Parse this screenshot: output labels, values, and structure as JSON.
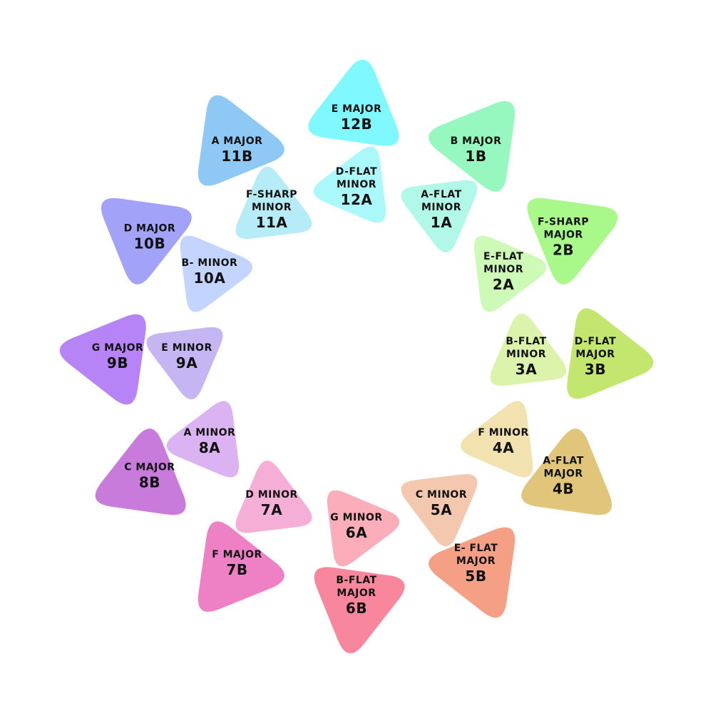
{
  "wheel": {
    "outer": [
      {
        "name": "E MAJOR",
        "code": "12B",
        "color": "#80F8FF"
      },
      {
        "name": "B MAJOR",
        "code": "1B",
        "color": "#96F8BE"
      },
      {
        "name": "F-SHARP MAJOR",
        "code": "2B",
        "color": "#A8F88A"
      },
      {
        "name": "D-FLAT MAJOR",
        "code": "3B",
        "color": "#C2E66E"
      },
      {
        "name": "A-FLAT MAJOR",
        "code": "4B",
        "color": "#E0C57A"
      },
      {
        "name": "E- FLAT MAJOR",
        "code": "5B",
        "color": "#F59F85"
      },
      {
        "name": "B-FLAT MAJOR",
        "code": "6B",
        "color": "#F8869C"
      },
      {
        "name": "F MAJOR",
        "code": "7B",
        "color": "#EE80C6"
      },
      {
        "name": "C MAJOR",
        "code": "8B",
        "color": "#C97BDC"
      },
      {
        "name": "G MAJOR",
        "code": "9B",
        "color": "#B784F8"
      },
      {
        "name": "D MAJOR",
        "code": "10B",
        "color": "#A1A2F8"
      },
      {
        "name": "A MAJOR",
        "code": "11B",
        "color": "#8EC8F5"
      }
    ],
    "inner": [
      {
        "name": "D-FLAT MINOR",
        "code": "12A",
        "color": "#AAF8FA"
      },
      {
        "name": "A-FLAT MINOR",
        "code": "1A",
        "color": "#B2F8E8"
      },
      {
        "name": "E-FLAT MINOR",
        "code": "2A",
        "color": "#CDFAB6"
      },
      {
        "name": "B-FLAT MINOR",
        "code": "3A",
        "color": "#DBF3AA"
      },
      {
        "name": "F MINOR",
        "code": "4A",
        "color": "#F1E2B0"
      },
      {
        "name": "C MINOR",
        "code": "5A",
        "color": "#F4C8AE"
      },
      {
        "name": "G MINOR",
        "code": "6A",
        "color": "#FBADBA"
      },
      {
        "name": "D MINOR",
        "code": "7A",
        "color": "#F5AED6"
      },
      {
        "name": "A MINOR",
        "code": "8A",
        "color": "#DBB2F2"
      },
      {
        "name": "E MINOR",
        "code": "9A",
        "color": "#C5B6F3"
      },
      {
        "name": "B- MINOR",
        "code": "10A",
        "color": "#C2D4FF"
      },
      {
        "name": "F-SHARP MINOR",
        "code": "11A",
        "color": "#B6ECF8"
      }
    ]
  }
}
